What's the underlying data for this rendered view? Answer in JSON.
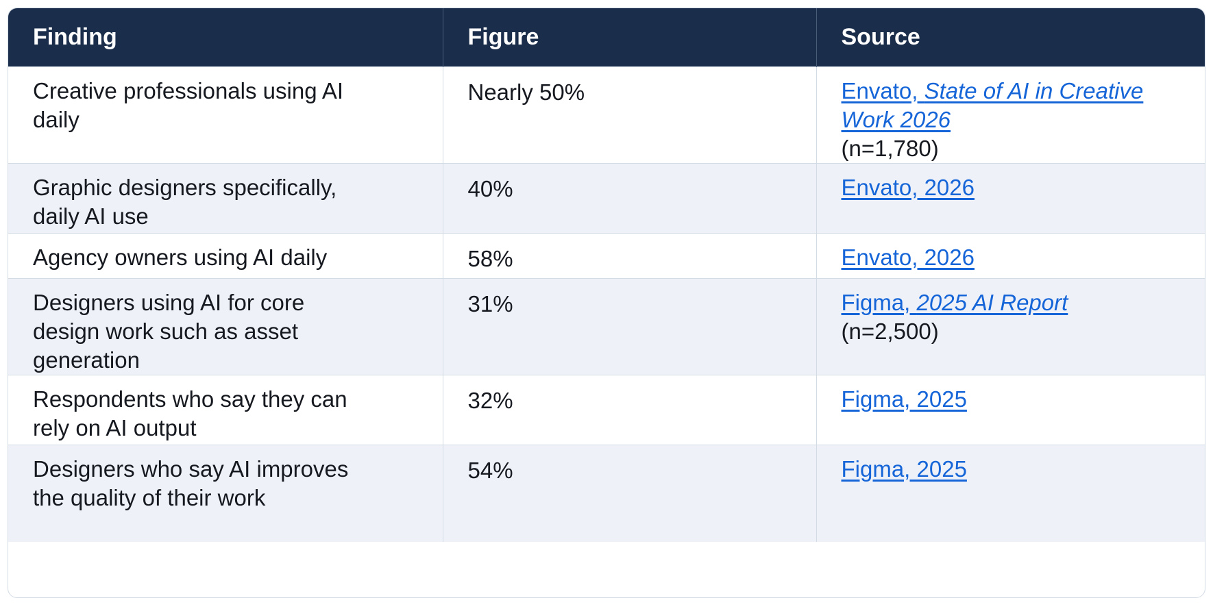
{
  "headers": [
    "Finding",
    "Figure",
    "Source"
  ],
  "rows": [
    {
      "finding": "Creative professionals using AI daily",
      "figure": "Nearly 50%",
      "source_plain": "Envato, ",
      "source_ital": "State of AI in Creative Work 2026",
      "source_note": "(n=1,780)"
    },
    {
      "finding": "Graphic designers specifically, daily AI use",
      "figure": "40%",
      "source_plain": "Envato, 2026",
      "source_ital": "",
      "source_note": ""
    },
    {
      "finding": "Agency owners using AI daily",
      "figure": "58%",
      "source_plain": "Envato, 2026",
      "source_ital": "",
      "source_note": ""
    },
    {
      "finding": "Designers using AI for core design work such as asset generation",
      "figure": "31%",
      "source_plain": "Figma, ",
      "source_ital": "2025 AI Report",
      "source_note": "(n=2,500)"
    },
    {
      "finding": "Respondents who say they can rely on AI output",
      "figure": "32%",
      "source_plain": "Figma, 2025",
      "source_ital": "",
      "source_note": ""
    },
    {
      "finding": "Designers who say AI improves the quality of their work",
      "figure": "54%",
      "source_plain": "Figma, 2025",
      "source_ital": "",
      "source_note": ""
    }
  ],
  "colors": {
    "header_bg": "#1a2d4a",
    "link": "#1565d8",
    "stripe": "#eef2f8",
    "border": "#d3dbe5"
  }
}
